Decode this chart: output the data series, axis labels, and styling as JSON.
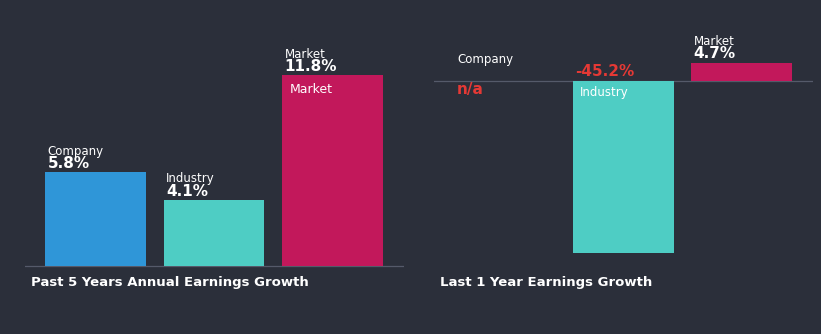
{
  "bg_color": "#2b2f3a",
  "left_chart": {
    "title": "Past 5 Years Annual Earnings Growth",
    "bars": [
      {
        "label": "Company",
        "value": 5.8,
        "color": "#2f96d8",
        "value_text": "5.8%",
        "value_color": "#ffffff",
        "label_color": "#ffffff"
      },
      {
        "label": "Industry",
        "value": 4.1,
        "color": "#4ecdc4",
        "value_text": "4.1%",
        "value_color": "#ffffff",
        "label_color": "#ffffff"
      },
      {
        "label": "Market",
        "value": 11.8,
        "color": "#c2185b",
        "value_text": "11.8%",
        "value_color": "#ffffff",
        "label_color": "#ffffff",
        "label_inside": true
      }
    ],
    "x_positions": [
      0,
      1,
      2
    ],
    "bar_width": 0.85,
    "ylim": [
      -1.5,
      15
    ],
    "baseline_y": 0
  },
  "right_chart": {
    "title": "Last 1 Year Earnings Growth",
    "bars": [
      {
        "label": "Company",
        "value": null,
        "color": null,
        "value_text": "n/a",
        "value_color": "#e53935",
        "label_color": "#ffffff"
      },
      {
        "label": "Industry",
        "value": -45.2,
        "color": "#4ecdc4",
        "value_text": "-45.2%",
        "value_color": "#e53935",
        "label_color": "#ffffff",
        "label_inside": true
      },
      {
        "label": "Market",
        "value": 4.7,
        "color": "#c2185b",
        "value_text": "4.7%",
        "value_color": "#ffffff",
        "label_color": "#ffffff"
      }
    ],
    "x_positions": [
      0,
      1,
      2
    ],
    "bar_width": 0.85,
    "ylim": [
      -55,
      15
    ],
    "baseline_y": 0
  },
  "divider_color": "#555a6a",
  "title_color": "#ffffff",
  "title_fontsize": 9.5
}
